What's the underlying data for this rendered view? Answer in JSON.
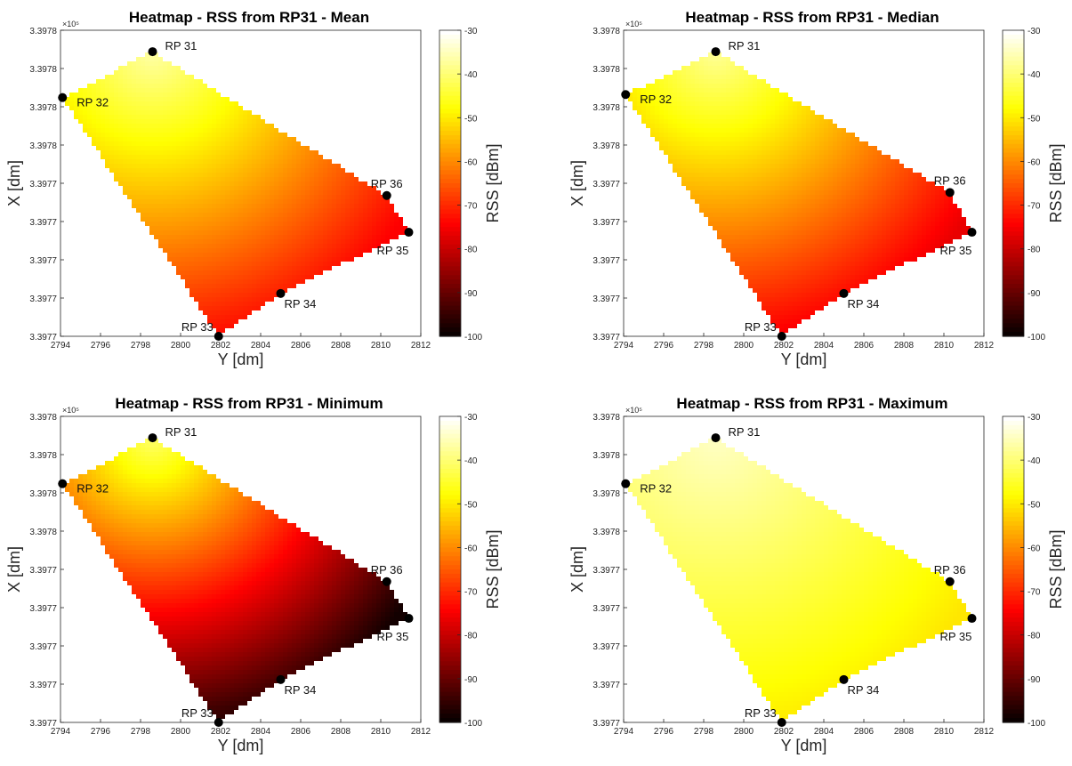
{
  "chart_data": [
    {
      "type": "heatmap",
      "title": "Heatmap - RSS from RP31 - Mean",
      "xlabel": "Y [dm]",
      "ylabel": "X [dm]",
      "y_exponent": "×10⁵",
      "colorbar_label": "RSS [dBm]",
      "colorbar_ticks": [
        -30,
        -40,
        -50,
        -60,
        -70,
        -80,
        -90,
        -100
      ],
      "color_range": [
        -100,
        -30
      ],
      "xlim": [
        2794,
        2812
      ],
      "x_ticks": [
        2794,
        2796,
        2798,
        2800,
        2802,
        2804,
        2806,
        2808,
        2810,
        2812
      ],
      "y_tick_labels": [
        "3.3978",
        "3.3978",
        "3.3978",
        "3.3978",
        "3.3977",
        "3.3977",
        "3.3977",
        "3.3977",
        "3.3977"
      ],
      "reference_points": [
        {
          "label": "RP 31",
          "y_dm": 2798.6,
          "x_frac": 0.93
        },
        {
          "label": "RP 32",
          "y_dm": 2794.1,
          "x_frac": 0.78
        },
        {
          "label": "RP 33",
          "y_dm": 2801.9,
          "x_frac": 0.0
        },
        {
          "label": "RP 34",
          "y_dm": 2805.0,
          "x_frac": 0.14
        },
        {
          "label": "RP 35",
          "y_dm": 2811.4,
          "x_frac": 0.34
        },
        {
          "label": "RP 36",
          "y_dm": 2810.3,
          "x_frac": 0.46
        }
      ],
      "field": {
        "stats": "mean",
        "near": -36,
        "far": -74,
        "min_clip": -100
      }
    },
    {
      "type": "heatmap",
      "title": "Heatmap - RSS from RP31 - Median",
      "xlabel": "Y [dm]",
      "ylabel": "X [dm]",
      "y_exponent": "×10⁵",
      "colorbar_label": "RSS [dBm]",
      "colorbar_ticks": [
        -30,
        -40,
        -50,
        -60,
        -70,
        -80,
        -90,
        -100
      ],
      "color_range": [
        -100,
        -30
      ],
      "xlim": [
        2794,
        2812
      ],
      "x_ticks": [
        2794,
        2796,
        2798,
        2800,
        2802,
        2804,
        2806,
        2808,
        2810,
        2812
      ],
      "y_tick_labels": [
        "3.3978",
        "3.3978",
        "3.3978",
        "3.3978",
        "3.3977",
        "3.3977",
        "3.3977",
        "3.3977",
        "3.3977"
      ],
      "reference_points": [
        {
          "label": "RP 31",
          "y_dm": 2798.6,
          "x_frac": 0.93
        },
        {
          "label": "RP 32",
          "y_dm": 2794.1,
          "x_frac": 0.79
        },
        {
          "label": "RP 33",
          "y_dm": 2801.9,
          "x_frac": 0.0
        },
        {
          "label": "RP 34",
          "y_dm": 2805.0,
          "x_frac": 0.14
        },
        {
          "label": "RP 35",
          "y_dm": 2811.4,
          "x_frac": 0.34
        },
        {
          "label": "RP 36",
          "y_dm": 2810.3,
          "x_frac": 0.47
        }
      ],
      "field": {
        "stats": "median",
        "near": -37,
        "far": -76,
        "min_clip": -100
      }
    },
    {
      "type": "heatmap",
      "title": "Heatmap - RSS from RP31 - Minimum",
      "xlabel": "Y [dm]",
      "ylabel": "X [dm]",
      "y_exponent": "×10⁵",
      "colorbar_label": "RSS [dBm]",
      "colorbar_ticks": [
        -30,
        -40,
        -50,
        -60,
        -70,
        -80,
        -90,
        -100
      ],
      "color_range": [
        -100,
        -30
      ],
      "xlim": [
        2794,
        2812
      ],
      "x_ticks": [
        2794,
        2796,
        2798,
        2800,
        2802,
        2804,
        2806,
        2808,
        2810,
        2812
      ],
      "y_tick_labels": [
        "3.3978",
        "3.3978",
        "3.3978",
        "3.3978",
        "3.3977",
        "3.3977",
        "3.3977",
        "3.3977",
        "3.3977"
      ],
      "reference_points": [
        {
          "label": "RP 31",
          "y_dm": 2798.6,
          "x_frac": 0.93
        },
        {
          "label": "RP 32",
          "y_dm": 2794.1,
          "x_frac": 0.78
        },
        {
          "label": "RP 33",
          "y_dm": 2801.9,
          "x_frac": 0.0
        },
        {
          "label": "RP 34",
          "y_dm": 2805.0,
          "x_frac": 0.14
        },
        {
          "label": "RP 35",
          "y_dm": 2811.4,
          "x_frac": 0.34
        },
        {
          "label": "RP 36",
          "y_dm": 2810.3,
          "x_frac": 0.46
        }
      ],
      "field": {
        "stats": "minimum",
        "near": -40,
        "far": -98,
        "min_clip": -100
      }
    },
    {
      "type": "heatmap",
      "title": "Heatmap - RSS from RP31 - Maximum",
      "xlabel": "Y [dm]",
      "ylabel": "X [dm]",
      "y_exponent": "×10⁵",
      "colorbar_label": "RSS [dBm]",
      "colorbar_ticks": [
        -30,
        -40,
        -50,
        -60,
        -70,
        -80,
        -90,
        -100
      ],
      "color_range": [
        -100,
        -30
      ],
      "xlim": [
        2794,
        2812
      ],
      "x_ticks": [
        2794,
        2796,
        2798,
        2800,
        2802,
        2804,
        2806,
        2808,
        2810,
        2812
      ],
      "y_tick_labels": [
        "3.3978",
        "3.3978",
        "3.3978",
        "3.3978",
        "3.3977",
        "3.3977",
        "3.3977",
        "3.3977",
        "3.3977"
      ],
      "reference_points": [
        {
          "label": "RP 31",
          "y_dm": 2798.6,
          "x_frac": 0.93
        },
        {
          "label": "RP 32",
          "y_dm": 2794.1,
          "x_frac": 0.78
        },
        {
          "label": "RP 33",
          "y_dm": 2801.9,
          "x_frac": 0.0
        },
        {
          "label": "RP 34",
          "y_dm": 2805.0,
          "x_frac": 0.14
        },
        {
          "label": "RP 35",
          "y_dm": 2811.4,
          "x_frac": 0.34
        },
        {
          "label": "RP 36",
          "y_dm": 2810.3,
          "x_frac": 0.46
        }
      ],
      "field": {
        "stats": "maximum",
        "near": -34,
        "far": -50,
        "min_clip": -100
      }
    }
  ]
}
